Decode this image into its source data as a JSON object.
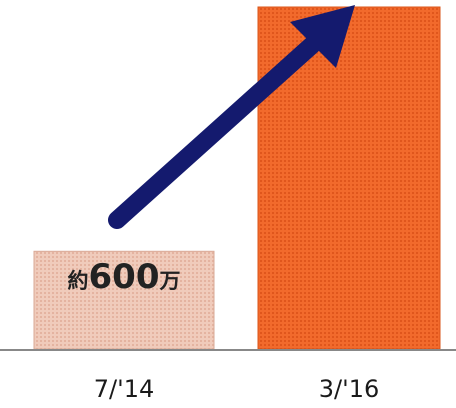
{
  "chart_data": {
    "type": "bar",
    "title": "",
    "xlabel": "",
    "ylabel": "",
    "categories": [
      "7/'14",
      "3/'16"
    ],
    "values": [
      600,
      2100
    ],
    "data_labels": [
      {
        "prefix": "約",
        "number": "600",
        "suffix": "万"
      },
      {
        "prefix": "",
        "number": "",
        "suffix": ""
      }
    ],
    "ylim": [
      0,
      2100
    ],
    "grid": false,
    "legend": "none",
    "annotation": "growth-arrow",
    "colors": {
      "bar_1": "#efc6b6",
      "bar_2": "#f26a2c",
      "arrow": "#141a6e",
      "baseline": "#888888"
    }
  }
}
